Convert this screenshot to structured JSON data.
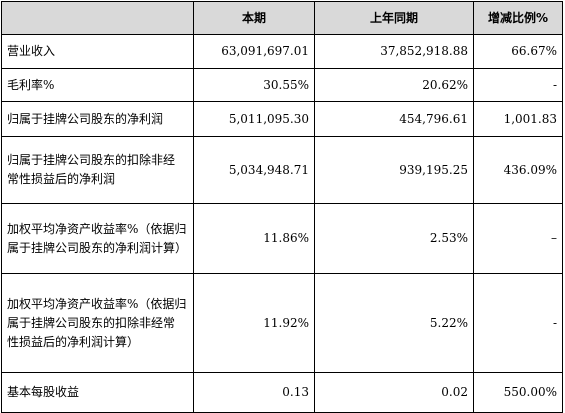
{
  "header": {
    "col0": "",
    "col1": "本期",
    "col2": "上年同期",
    "col3": "增减比例%"
  },
  "rows": [
    {
      "label_lines": [
        "营业收入"
      ],
      "current": "63,091,697.01",
      "prior": "37,852,918.88",
      "change": "66.67%"
    },
    {
      "label_lines": [
        "毛利率%"
      ],
      "current": "30.55%",
      "prior": "20.62%",
      "change": "-"
    },
    {
      "label_lines": [
        "归属于挂牌公司股东的净利润"
      ],
      "current": "5,011,095.30",
      "prior": "454,796.61",
      "change": "1,001.83"
    },
    {
      "label_lines": [
        "归属于挂牌公司股东的扣除非经",
        "常性损益后的净利润"
      ],
      "current": "5,034,948.71",
      "prior": "939,195.25",
      "change": "436.09%"
    },
    {
      "label_lines": [
        "加权平均净资产收益率%（依据归",
        "属于挂牌公司股东的净利润计算）"
      ],
      "current": "11.86%",
      "prior": "2.53%",
      "change": "–"
    },
    {
      "label_lines": [
        "加权平均净资产收益率%（依据归",
        "属于挂牌公司股东的扣除非经常",
        "性损益后的净利润计算）"
      ],
      "current": "11.92%",
      "prior": "5.22%",
      "change": "-"
    },
    {
      "label_lines": [
        "基本每股收益"
      ],
      "current": "0.13",
      "prior": "0.02",
      "change": "550.00%"
    }
  ]
}
